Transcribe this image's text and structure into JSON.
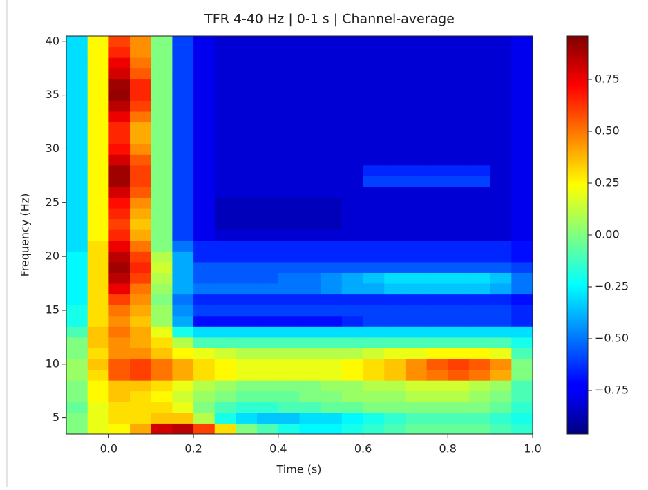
{
  "chart_data": {
    "type": "heatmap",
    "title": "TFR 4-40 Hz | 0-1 s | Channel-average",
    "xlabel": "Time (s)",
    "ylabel": "Frequency (Hz)",
    "colormap": "jet",
    "x": [
      -0.075,
      -0.025,
      0.025,
      0.075,
      0.125,
      0.175,
      0.225,
      0.275,
      0.325,
      0.375,
      0.425,
      0.475,
      0.525,
      0.575,
      0.625,
      0.675,
      0.725,
      0.775,
      0.825,
      0.875,
      0.925,
      0.975
    ],
    "y": [
      4,
      5,
      6,
      7,
      8,
      9,
      10,
      11,
      12,
      13,
      14,
      15,
      16,
      17,
      18,
      19,
      20,
      21,
      22,
      23,
      24,
      25,
      26,
      27,
      28,
      29,
      30,
      31,
      32,
      33,
      34,
      35,
      36,
      37,
      38,
      39,
      40
    ],
    "z": [
      [
        0.0,
        0.2,
        0.25,
        0.4,
        0.8,
        0.85,
        0.6,
        0.3,
        0.0,
        -0.1,
        -0.2,
        -0.25,
        -0.25,
        -0.2,
        -0.15,
        -0.1,
        -0.05,
        -0.05,
        -0.05,
        -0.05,
        -0.1,
        -0.15
      ],
      [
        0.0,
        0.2,
        0.3,
        0.3,
        0.35,
        0.35,
        0.1,
        -0.2,
        -0.3,
        -0.35,
        -0.35,
        -0.3,
        -0.3,
        -0.25,
        -0.2,
        -0.15,
        -0.1,
        -0.1,
        -0.1,
        -0.1,
        -0.15,
        -0.2
      ],
      [
        -0.05,
        0.2,
        0.3,
        0.3,
        0.3,
        0.2,
        0.0,
        -0.1,
        -0.15,
        -0.15,
        -0.1,
        -0.1,
        -0.05,
        -0.05,
        0.0,
        0.0,
        0.0,
        0.0,
        0.0,
        0.0,
        -0.05,
        -0.15
      ],
      [
        0.0,
        0.25,
        0.35,
        0.3,
        0.25,
        0.15,
        0.05,
        0.0,
        -0.05,
        -0.05,
        -0.05,
        0.0,
        0.0,
        0.05,
        0.05,
        0.05,
        0.1,
        0.1,
        0.1,
        0.05,
        0.0,
        -0.1
      ],
      [
        0.0,
        0.25,
        0.35,
        0.35,
        0.3,
        0.2,
        0.1,
        0.05,
        0.0,
        0.0,
        0.0,
        0.0,
        0.05,
        0.05,
        0.1,
        0.1,
        0.15,
        0.15,
        0.15,
        0.1,
        0.05,
        -0.1
      ],
      [
        0.05,
        0.3,
        0.55,
        0.6,
        0.5,
        0.4,
        0.3,
        0.25,
        0.2,
        0.2,
        0.2,
        0.2,
        0.2,
        0.25,
        0.3,
        0.35,
        0.45,
        0.5,
        0.55,
        0.5,
        0.4,
        0.0
      ],
      [
        0.05,
        0.35,
        0.55,
        0.6,
        0.5,
        0.4,
        0.3,
        0.25,
        0.2,
        0.2,
        0.2,
        0.2,
        0.2,
        0.25,
        0.3,
        0.35,
        0.45,
        0.55,
        0.6,
        0.55,
        0.45,
        0.0
      ],
      [
        0.0,
        0.3,
        0.45,
        0.45,
        0.35,
        0.25,
        0.2,
        0.15,
        0.1,
        0.1,
        0.1,
        0.1,
        0.1,
        0.1,
        0.15,
        0.2,
        0.2,
        0.25,
        0.25,
        0.25,
        0.2,
        -0.1
      ],
      [
        0.0,
        0.35,
        0.45,
        0.4,
        0.3,
        0.1,
        -0.1,
        -0.1,
        -0.1,
        -0.1,
        -0.1,
        -0.1,
        -0.1,
        -0.1,
        -0.1,
        -0.1,
        -0.1,
        -0.1,
        -0.1,
        -0.1,
        -0.1,
        -0.2
      ],
      [
        -0.1,
        0.35,
        0.5,
        0.4,
        0.2,
        -0.2,
        -0.3,
        -0.3,
        -0.3,
        -0.3,
        -0.3,
        -0.3,
        -0.3,
        -0.3,
        -0.3,
        -0.3,
        -0.3,
        -0.3,
        -0.3,
        -0.3,
        -0.3,
        -0.3
      ],
      [
        -0.2,
        0.3,
        0.45,
        0.35,
        0.05,
        -0.4,
        -0.7,
        -0.7,
        -0.7,
        -0.7,
        -0.7,
        -0.7,
        -0.7,
        -0.65,
        -0.6,
        -0.6,
        -0.6,
        -0.6,
        -0.6,
        -0.6,
        -0.6,
        -0.65
      ],
      [
        -0.2,
        0.3,
        0.5,
        0.4,
        0.05,
        -0.45,
        -0.6,
        -0.6,
        -0.6,
        -0.6,
        -0.6,
        -0.6,
        -0.6,
        -0.6,
        -0.6,
        -0.6,
        -0.6,
        -0.6,
        -0.6,
        -0.6,
        -0.6,
        -0.65
      ],
      [
        -0.25,
        0.3,
        0.6,
        0.45,
        0.0,
        -0.5,
        -0.65,
        -0.65,
        -0.65,
        -0.65,
        -0.65,
        -0.65,
        -0.65,
        -0.65,
        -0.65,
        -0.65,
        -0.65,
        -0.65,
        -0.65,
        -0.65,
        -0.65,
        -0.7
      ],
      [
        -0.25,
        0.3,
        0.75,
        0.5,
        0.05,
        -0.4,
        -0.5,
        -0.5,
        -0.5,
        -0.5,
        -0.5,
        -0.5,
        -0.45,
        -0.4,
        -0.4,
        -0.35,
        -0.35,
        -0.35,
        -0.35,
        -0.35,
        -0.4,
        -0.5
      ],
      [
        -0.25,
        0.3,
        0.85,
        0.6,
        0.1,
        -0.4,
        -0.55,
        -0.55,
        -0.55,
        -0.55,
        -0.5,
        -0.5,
        -0.45,
        -0.4,
        -0.35,
        -0.3,
        -0.3,
        -0.3,
        -0.3,
        -0.3,
        -0.35,
        -0.5
      ],
      [
        -0.25,
        0.3,
        0.9,
        0.65,
        0.15,
        -0.4,
        -0.55,
        -0.55,
        -0.55,
        -0.55,
        -0.55,
        -0.55,
        -0.55,
        -0.55,
        -0.55,
        -0.55,
        -0.55,
        -0.55,
        -0.55,
        -0.55,
        -0.55,
        -0.6
      ],
      [
        -0.25,
        0.3,
        0.85,
        0.6,
        0.1,
        -0.4,
        -0.65,
        -0.65,
        -0.65,
        -0.65,
        -0.65,
        -0.65,
        -0.65,
        -0.65,
        -0.65,
        -0.65,
        -0.65,
        -0.65,
        -0.65,
        -0.65,
        -0.65,
        -0.7
      ],
      [
        -0.3,
        0.3,
        0.75,
        0.5,
        0.0,
        -0.5,
        -0.65,
        -0.65,
        -0.65,
        -0.65,
        -0.65,
        -0.65,
        -0.65,
        -0.65,
        -0.65,
        -0.65,
        -0.65,
        -0.65,
        -0.65,
        -0.65,
        -0.65,
        -0.7
      ],
      [
        -0.3,
        0.25,
        0.65,
        0.4,
        0.0,
        -0.6,
        -0.75,
        -0.8,
        -0.8,
        -0.8,
        -0.8,
        -0.8,
        -0.8,
        -0.8,
        -0.8,
        -0.8,
        -0.8,
        -0.8,
        -0.8,
        -0.8,
        -0.8,
        -0.75
      ],
      [
        -0.3,
        0.25,
        0.6,
        0.35,
        0.0,
        -0.6,
        -0.75,
        -0.85,
        -0.85,
        -0.85,
        -0.85,
        -0.85,
        -0.85,
        -0.8,
        -0.8,
        -0.8,
        -0.8,
        -0.8,
        -0.8,
        -0.8,
        -0.8,
        -0.75
      ],
      [
        -0.3,
        0.25,
        0.65,
        0.4,
        0.0,
        -0.6,
        -0.75,
        -0.85,
        -0.85,
        -0.85,
        -0.85,
        -0.85,
        -0.85,
        -0.8,
        -0.8,
        -0.8,
        -0.8,
        -0.8,
        -0.8,
        -0.8,
        -0.8,
        -0.75
      ],
      [
        -0.3,
        0.25,
        0.7,
        0.45,
        0.0,
        -0.6,
        -0.75,
        -0.85,
        -0.85,
        -0.85,
        -0.85,
        -0.85,
        -0.85,
        -0.8,
        -0.8,
        -0.8,
        -0.8,
        -0.8,
        -0.8,
        -0.8,
        -0.8,
        -0.75
      ],
      [
        -0.3,
        0.25,
        0.8,
        0.55,
        0.0,
        -0.6,
        -0.75,
        -0.8,
        -0.8,
        -0.8,
        -0.8,
        -0.8,
        -0.8,
        -0.8,
        -0.8,
        -0.8,
        -0.8,
        -0.8,
        -0.8,
        -0.8,
        -0.8,
        -0.75
      ],
      [
        -0.3,
        0.25,
        0.9,
        0.6,
        0.0,
        -0.6,
        -0.75,
        -0.8,
        -0.8,
        -0.8,
        -0.8,
        -0.8,
        -0.8,
        -0.8,
        -0.6,
        -0.6,
        -0.6,
        -0.6,
        -0.6,
        -0.6,
        -0.8,
        -0.75
      ],
      [
        -0.3,
        0.25,
        0.9,
        0.6,
        0.0,
        -0.6,
        -0.75,
        -0.8,
        -0.8,
        -0.8,
        -0.8,
        -0.8,
        -0.8,
        -0.8,
        -0.65,
        -0.65,
        -0.65,
        -0.65,
        -0.65,
        -0.65,
        -0.8,
        -0.75
      ],
      [
        -0.3,
        0.25,
        0.8,
        0.55,
        0.0,
        -0.6,
        -0.75,
        -0.8,
        -0.8,
        -0.8,
        -0.8,
        -0.8,
        -0.8,
        -0.8,
        -0.8,
        -0.8,
        -0.8,
        -0.8,
        -0.8,
        -0.8,
        -0.8,
        -0.75
      ],
      [
        -0.3,
        0.25,
        0.7,
        0.45,
        0.0,
        -0.6,
        -0.75,
        -0.8,
        -0.8,
        -0.8,
        -0.8,
        -0.8,
        -0.8,
        -0.8,
        -0.8,
        -0.8,
        -0.8,
        -0.8,
        -0.8,
        -0.8,
        -0.8,
        -0.75
      ],
      [
        -0.3,
        0.25,
        0.65,
        0.4,
        0.0,
        -0.6,
        -0.75,
        -0.8,
        -0.8,
        -0.8,
        -0.8,
        -0.8,
        -0.8,
        -0.8,
        -0.8,
        -0.8,
        -0.8,
        -0.8,
        -0.8,
        -0.8,
        -0.8,
        -0.75
      ],
      [
        -0.3,
        0.25,
        0.65,
        0.4,
        0.0,
        -0.6,
        -0.75,
        -0.8,
        -0.8,
        -0.8,
        -0.8,
        -0.8,
        -0.8,
        -0.8,
        -0.8,
        -0.8,
        -0.8,
        -0.8,
        -0.8,
        -0.8,
        -0.8,
        -0.75
      ],
      [
        -0.3,
        0.25,
        0.75,
        0.5,
        0.0,
        -0.6,
        -0.75,
        -0.8,
        -0.8,
        -0.8,
        -0.8,
        -0.8,
        -0.8,
        -0.8,
        -0.8,
        -0.8,
        -0.8,
        -0.8,
        -0.8,
        -0.8,
        -0.8,
        -0.75
      ],
      [
        -0.3,
        0.25,
        0.85,
        0.6,
        0.0,
        -0.6,
        -0.75,
        -0.8,
        -0.8,
        -0.8,
        -0.8,
        -0.8,
        -0.8,
        -0.8,
        -0.8,
        -0.8,
        -0.8,
        -0.8,
        -0.8,
        -0.8,
        -0.8,
        -0.75
      ],
      [
        -0.3,
        0.25,
        0.92,
        0.65,
        0.0,
        -0.6,
        -0.75,
        -0.8,
        -0.8,
        -0.8,
        -0.8,
        -0.8,
        -0.8,
        -0.8,
        -0.8,
        -0.8,
        -0.8,
        -0.8,
        -0.8,
        -0.8,
        -0.8,
        -0.75
      ],
      [
        -0.3,
        0.25,
        0.9,
        0.65,
        0.0,
        -0.6,
        -0.75,
        -0.8,
        -0.8,
        -0.8,
        -0.8,
        -0.8,
        -0.8,
        -0.8,
        -0.8,
        -0.8,
        -0.8,
        -0.8,
        -0.8,
        -0.8,
        -0.8,
        -0.75
      ],
      [
        -0.3,
        0.25,
        0.8,
        0.55,
        0.0,
        -0.6,
        -0.75,
        -0.8,
        -0.8,
        -0.8,
        -0.8,
        -0.8,
        -0.8,
        -0.8,
        -0.8,
        -0.8,
        -0.8,
        -0.8,
        -0.8,
        -0.8,
        -0.8,
        -0.75
      ],
      [
        -0.3,
        0.25,
        0.75,
        0.5,
        0.0,
        -0.6,
        -0.75,
        -0.8,
        -0.8,
        -0.8,
        -0.8,
        -0.8,
        -0.8,
        -0.8,
        -0.8,
        -0.8,
        -0.8,
        -0.8,
        -0.8,
        -0.8,
        -0.8,
        -0.75
      ],
      [
        -0.3,
        0.25,
        0.65,
        0.45,
        0.0,
        -0.6,
        -0.75,
        -0.8,
        -0.8,
        -0.8,
        -0.8,
        -0.8,
        -0.8,
        -0.8,
        -0.8,
        -0.8,
        -0.8,
        -0.8,
        -0.8,
        -0.8,
        -0.8,
        -0.75
      ],
      [
        -0.3,
        0.25,
        0.6,
        0.45,
        0.0,
        -0.6,
        -0.75,
        -0.8,
        -0.8,
        -0.8,
        -0.8,
        -0.8,
        -0.8,
        -0.8,
        -0.8,
        -0.8,
        -0.8,
        -0.8,
        -0.8,
        -0.8,
        -0.8,
        -0.75
      ]
    ],
    "xlim": [
      -0.1,
      1.0
    ],
    "ylim": [
      3.5,
      40.5
    ],
    "xticks": [
      {
        "value": 0.0,
        "label": "0.0"
      },
      0.2,
      0.4,
      0.6,
      0.8,
      {
        "value": 1.0,
        "label": "1.0"
      }
    ],
    "yticks": [
      5,
      10,
      15,
      20,
      25,
      30,
      35,
      40
    ],
    "clim": [
      -0.96,
      0.96
    ],
    "colorbar_ticks": [
      {
        "value": -0.75,
        "label": "−0.75"
      },
      {
        "value": -0.5,
        "label": "−0.50"
      },
      {
        "value": -0.25,
        "label": "−0.25"
      },
      {
        "value": 0,
        "label": "0.00"
      },
      0.25,
      {
        "value": 0.5,
        "label": "0.50"
      },
      0.75
    ]
  }
}
